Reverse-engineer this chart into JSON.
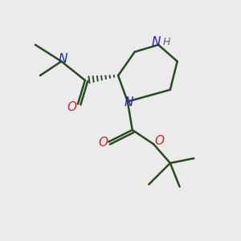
{
  "background_color": "#ebebeb",
  "bond_color": "#2a4a22",
  "bond_width": 1.8,
  "atom_colors": {
    "N": "#2222cc",
    "O": "#cc2222",
    "H": "#666666"
  },
  "figsize": [
    3.0,
    3.0
  ],
  "dpi": 100
}
